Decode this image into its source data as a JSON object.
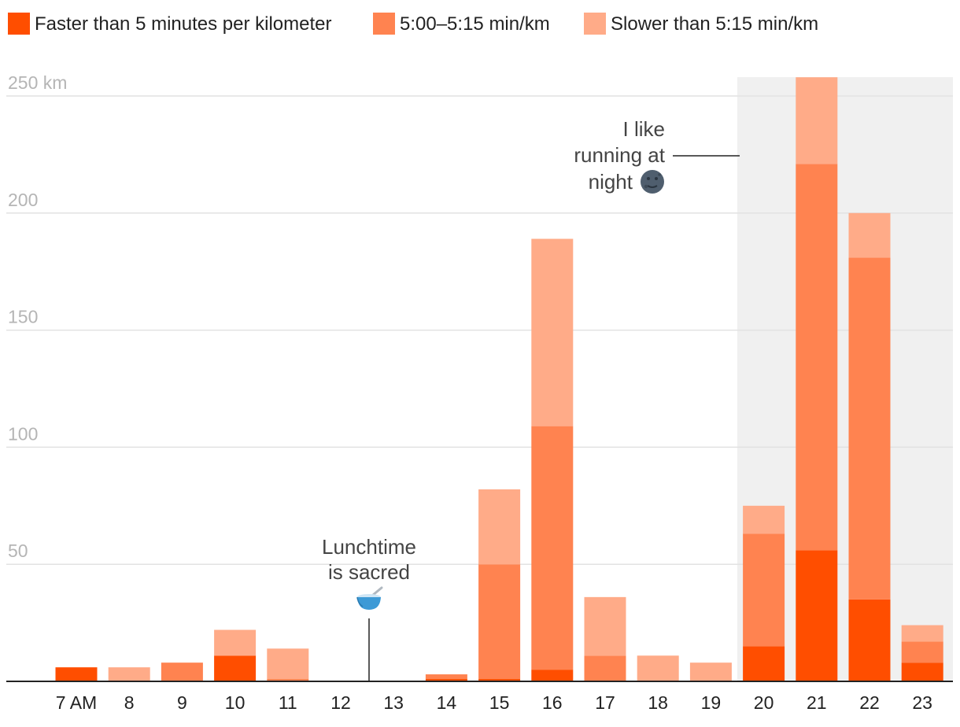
{
  "chart_data": {
    "type": "bar",
    "stacked": true,
    "title": "",
    "xlabel": "",
    "ylabel": "",
    "y_unit": "km",
    "ylim": [
      0,
      250
    ],
    "yticks": [
      50,
      100,
      150,
      200,
      250
    ],
    "ytick_labels": [
      "50",
      "100",
      "150",
      "200",
      "250 km"
    ],
    "grid": true,
    "legend_position": "top-left",
    "categories": [
      "7 AM",
      "8",
      "9",
      "10",
      "11",
      "12",
      "13",
      "14",
      "15",
      "16",
      "17",
      "18",
      "19",
      "20",
      "21",
      "22",
      "23"
    ],
    "series": [
      {
        "name": "Faster than 5 minutes per kilometer",
        "color": "#ff4e00",
        "values": [
          6,
          0,
          0,
          11,
          0,
          0,
          0,
          1,
          1,
          5,
          0,
          0,
          0,
          15,
          56,
          35,
          8
        ]
      },
      {
        "name": "5:00–5:15 min/km",
        "color": "#ff8350",
        "values": [
          0,
          0,
          8,
          0,
          1,
          0,
          0,
          2,
          49,
          104,
          11,
          0,
          0,
          48,
          165,
          146,
          9
        ]
      },
      {
        "name": "Slower than 5:15 min/km",
        "color": "#ffab88",
        "values": [
          0,
          6,
          0,
          11,
          13,
          0,
          0,
          0,
          32,
          80,
          25,
          11,
          8,
          12,
          37,
          19,
          7
        ]
      }
    ],
    "highlight": {
      "from": "20",
      "to": "23",
      "color": "#f0f0f0"
    },
    "annotations": [
      {
        "id": "lunch",
        "lines": [
          "Lunchtime",
          "is sacred"
        ],
        "emoji": "bowl-with-spoon",
        "at_category": "12.5"
      },
      {
        "id": "night",
        "lines": [
          "I like",
          "running at",
          "night"
        ],
        "emoji": "new-moon-face",
        "at_category": "20"
      }
    ]
  }
}
